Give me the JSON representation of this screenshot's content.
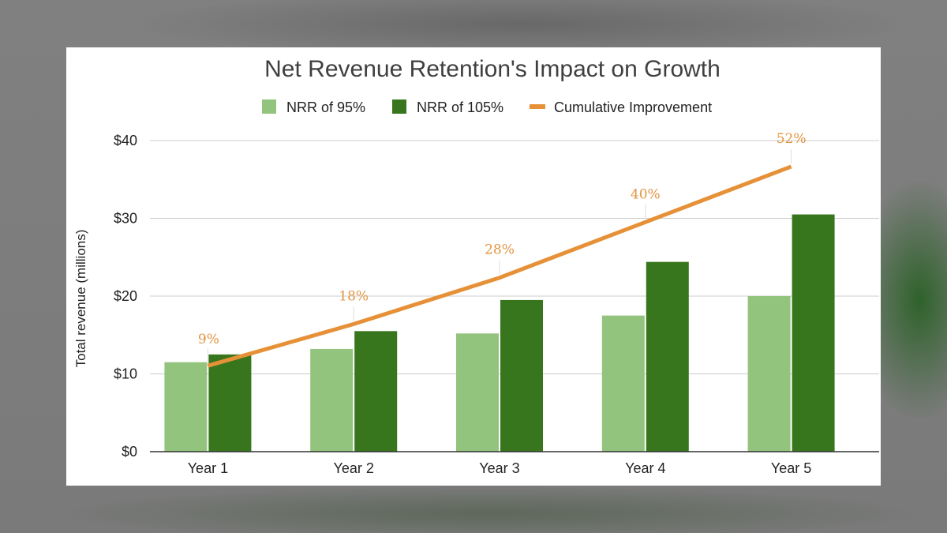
{
  "chart_data": {
    "type": "bar",
    "title": "Net Revenue Retention's Impact on Growth",
    "ylabel": "Total revenue (millions)",
    "xlabel": "",
    "categories": [
      "Year 1",
      "Year 2",
      "Year 3",
      "Year 4",
      "Year 5"
    ],
    "ylim": [
      0,
      40
    ],
    "yticks": [
      0,
      10,
      20,
      30,
      40
    ],
    "ytick_labels": [
      "$0",
      "$10",
      "$20",
      "$30",
      "$40"
    ],
    "grid": true,
    "legend_position": "top",
    "series": [
      {
        "name": "NRR of 95%",
        "type": "bar",
        "color": "#93c47d",
        "values": [
          11.5,
          13.2,
          15.2,
          17.5,
          20.0
        ]
      },
      {
        "name": "NRR of 105%",
        "type": "bar",
        "color": "#38761d",
        "values": [
          12.5,
          15.5,
          19.5,
          24.4,
          30.5
        ]
      },
      {
        "name": "Cumulative Improvement",
        "type": "line",
        "color": "#e69138",
        "values": [
          9,
          18,
          28,
          40,
          52
        ],
        "labels": [
          "9%",
          "18%",
          "28%",
          "40%",
          "52%"
        ]
      }
    ]
  }
}
